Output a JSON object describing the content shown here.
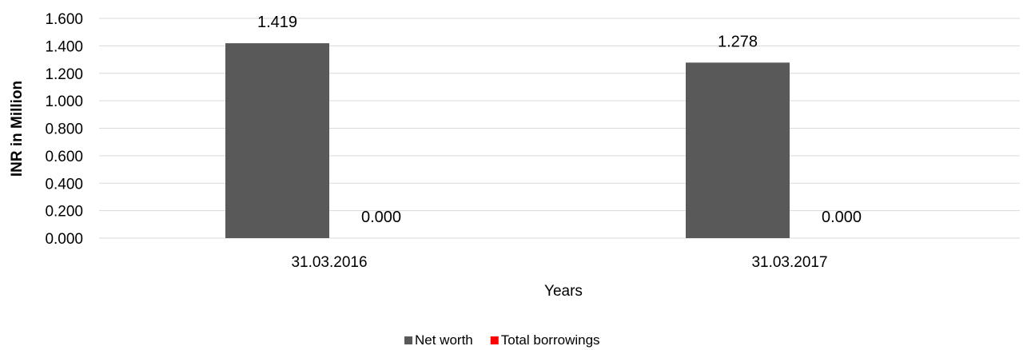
{
  "chart_data": {
    "type": "bar",
    "categories": [
      "31.03.2016",
      "31.03.2017"
    ],
    "series": [
      {
        "name": "Net worth",
        "values": [
          1.419,
          1.278
        ],
        "color": "#595959"
      },
      {
        "name": "Total borrowings",
        "values": [
          0.0,
          0.0
        ],
        "color": "#ff0000"
      }
    ],
    "data_labels": [
      [
        "1.419",
        "1.278"
      ],
      [
        "0.000",
        "0.000"
      ]
    ],
    "title": "",
    "xlabel": "Years",
    "ylabel": "INR in Million",
    "ylim": [
      0,
      1.6
    ],
    "yticks": [
      "0.000",
      "0.200",
      "0.400",
      "0.600",
      "0.800",
      "1.000",
      "1.200",
      "1.400",
      "1.600"
    ],
    "grid": true,
    "legend_position": "bottom"
  }
}
